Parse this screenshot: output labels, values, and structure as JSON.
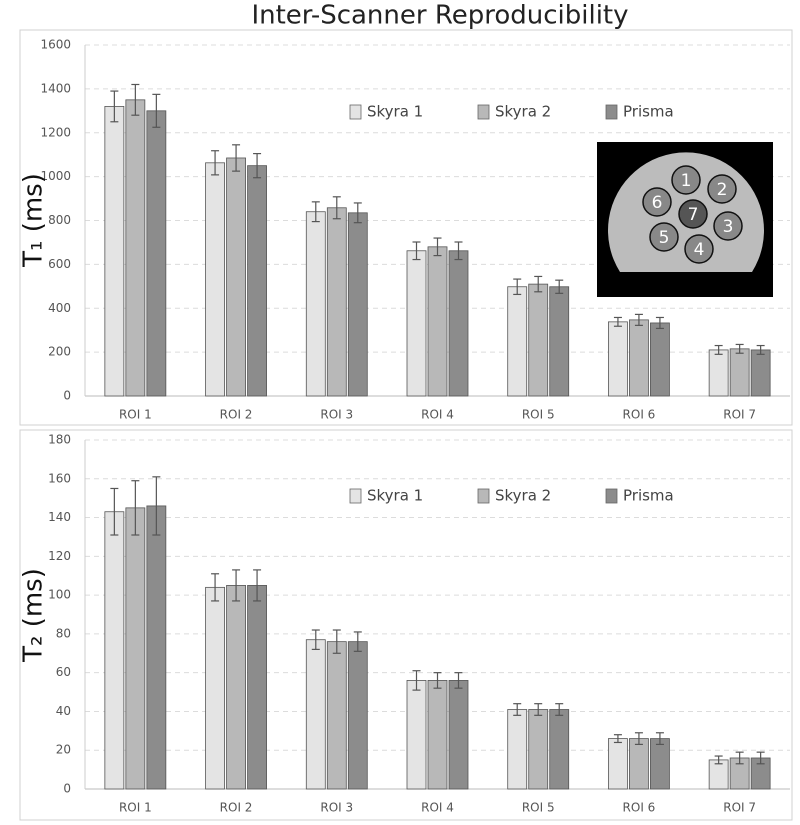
{
  "chart_data": [
    {
      "type": "bar",
      "title": "Inter-Scanner Reproducibility",
      "ylabel": "T₁ (ms)",
      "categories": [
        "ROI 1",
        "ROI 2",
        "ROI 3",
        "ROI 4",
        "ROI 5",
        "ROI 6",
        "ROI 7"
      ],
      "series": [
        {
          "name": "Skyra 1",
          "color": "#e4e4e4",
          "values": [
            1320,
            1063,
            840,
            662,
            498,
            338,
            210
          ],
          "errors": [
            70,
            55,
            45,
            40,
            35,
            20,
            20
          ]
        },
        {
          "name": "Skyra 2",
          "color": "#b8b8b8",
          "values": [
            1350,
            1085,
            858,
            680,
            510,
            347,
            215
          ],
          "errors": [
            70,
            60,
            50,
            40,
            35,
            25,
            20
          ]
        },
        {
          "name": "Prisma",
          "color": "#8c8c8c",
          "values": [
            1300,
            1050,
            835,
            662,
            498,
            333,
            210
          ],
          "errors": [
            75,
            55,
            45,
            40,
            30,
            25,
            20
          ]
        }
      ],
      "ylim": [
        0,
        1600
      ],
      "yticks": [
        0,
        200,
        400,
        600,
        800,
        1000,
        1200,
        1400,
        1600
      ],
      "grid": true,
      "legend": "top-right",
      "inset_labels": [
        "1",
        "2",
        "3",
        "4",
        "5",
        "6",
        "7"
      ]
    },
    {
      "type": "bar",
      "ylabel": "T₂ (ms)",
      "categories": [
        "ROI 1",
        "ROI 2",
        "ROI 3",
        "ROI 4",
        "ROI 5",
        "ROI 6",
        "ROI 7"
      ],
      "series": [
        {
          "name": "Skyra 1",
          "color": "#e4e4e4",
          "values": [
            143,
            104,
            77,
            56,
            41,
            26,
            15
          ],
          "errors": [
            12,
            7,
            5,
            5,
            3,
            2,
            2
          ]
        },
        {
          "name": "Skyra 2",
          "color": "#b8b8b8",
          "values": [
            145,
            105,
            76,
            56,
            41,
            26,
            16
          ],
          "errors": [
            14,
            8,
            6,
            4,
            3,
            3,
            3
          ]
        },
        {
          "name": "Prisma",
          "color": "#8c8c8c",
          "values": [
            146,
            105,
            76,
            56,
            41,
            26,
            16
          ],
          "errors": [
            15,
            8,
            5,
            4,
            3,
            3,
            3
          ]
        }
      ],
      "ylim": [
        0,
        180
      ],
      "yticks": [
        0,
        20,
        40,
        60,
        80,
        100,
        120,
        140,
        160,
        180
      ],
      "grid": true,
      "legend": "top-right"
    }
  ]
}
